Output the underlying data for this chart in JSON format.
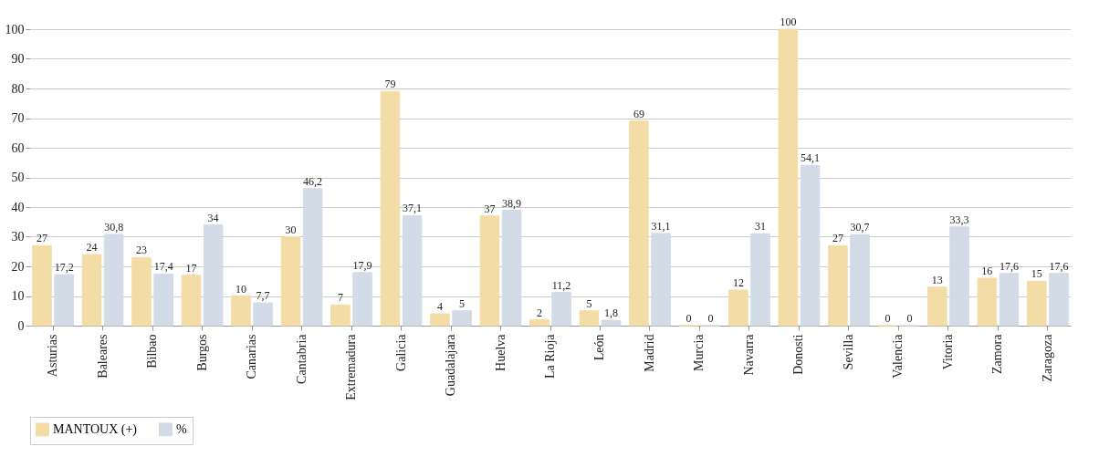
{
  "chart_data": {
    "type": "bar",
    "categories": [
      "Asturias",
      "Baleares",
      "Bilbao",
      "Burgos",
      "Canarias",
      "Cantabria",
      "Extremadura",
      "Galicia",
      "Guadalajara",
      "Huelva",
      "La Rioja",
      "León",
      "Madrid",
      "Murcia",
      "Navarra",
      "Donosti",
      "Sevilla",
      "Valencia",
      "Vitoria",
      "Zamora",
      "Zaragoza"
    ],
    "series": [
      {
        "name": "MANTOUX (+)",
        "color": "#f3dca6",
        "values": [
          27,
          24,
          23,
          17,
          10,
          30,
          7,
          79,
          4,
          37,
          2,
          5,
          69,
          0,
          12,
          100,
          27,
          0,
          13,
          16,
          15
        ],
        "value_labels": [
          "27",
          "24",
          "23",
          "17",
          "10",
          "30",
          "7",
          "79",
          "4",
          "37",
          "2",
          "5",
          "69",
          "0",
          "12",
          "100",
          "27",
          "0",
          "13",
          "16",
          "15"
        ]
      },
      {
        "name": "%",
        "color": "#d3dbe6",
        "values": [
          17.2,
          30.8,
          17.4,
          34,
          7.7,
          46.2,
          17.9,
          37.1,
          5,
          38.9,
          11.2,
          1.8,
          31.1,
          0,
          31,
          54.1,
          30.7,
          0,
          33.3,
          17.6,
          17.6
        ],
        "value_labels": [
          "17,2",
          "30,8",
          "17,4",
          "34",
          "7,7",
          "46,2",
          "17,9",
          "37,1",
          "5",
          "38,9",
          "11,2",
          "1,8",
          "31,1",
          "0",
          "31",
          "54,1",
          "30,7",
          "0",
          "33,3",
          "17,6",
          "17,6"
        ]
      }
    ],
    "ylim": [
      0,
      100
    ],
    "yticks": [
      0,
      10,
      20,
      30,
      40,
      50,
      60,
      70,
      80,
      90,
      100
    ],
    "grid": "y",
    "legend": "bottom"
  }
}
